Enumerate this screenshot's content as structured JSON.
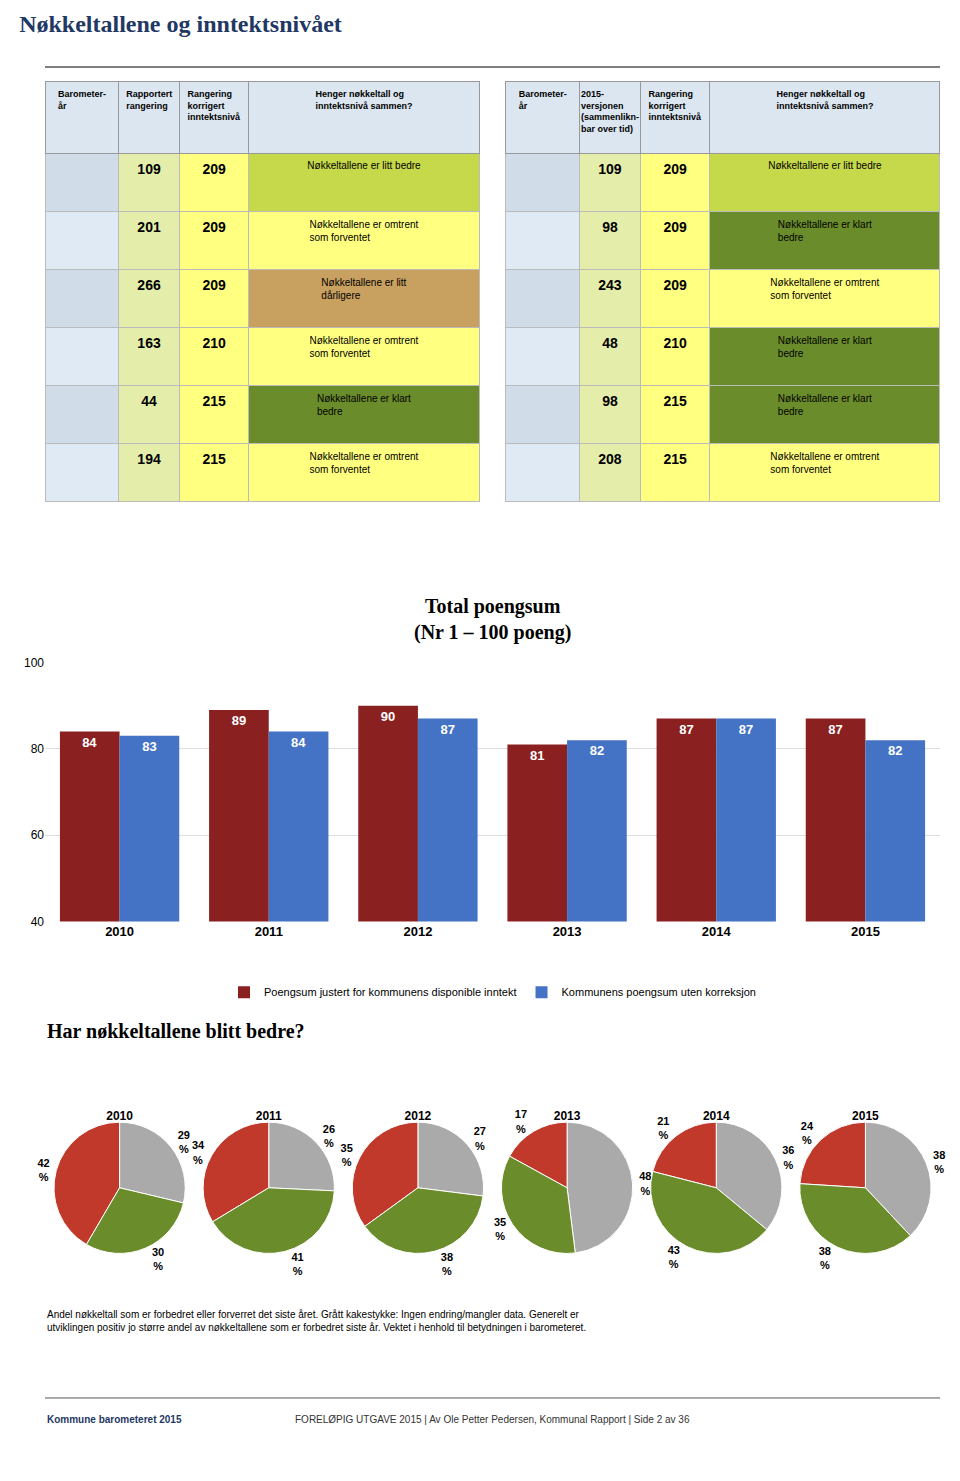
{
  "title": "Nøkkeltallene og inntektsnivået",
  "annotations": [
    "Har nøkkeltallene blitt bedre?",
    "Andel nøkkeltall som er forbedret eller forverret det siste året. Grått kakestykke: Ingen endring/mangler data. Generelt er\nutviklingen positiv jo større andel av nøkkeltallene som er forbedret siste år. Vektet i henhold til betydningen i barometeret.",
    "Kommune barometeret 2015",
    "FORELØPIG UTGAVE 2015 | Av Ole Petter Pedersen, Kommunal Rapport | Side 2 av 36"
  ],
  "chart_data": [
    {
      "type": "table",
      "headers": [
        "Barometer-\når",
        "Rapportert\nrangering",
        "Rangering\nkorrigert\ninntektsnivå",
        "Henger nøkkeltall og\ninntektsnivå sammen?"
      ],
      "rows": [
        [
          null,
          109,
          209,
          "Nøkkeltallene er litt bedre"
        ],
        [
          null,
          201,
          209,
          "Nøkkeltallene er omtrent\nsom forventet"
        ],
        [
          null,
          266,
          209,
          "Nøkkeltallene er litt\ndårligere"
        ],
        [
          null,
          163,
          210,
          "Nøkkeltallene er omtrent\nsom forventet"
        ],
        [
          null,
          44,
          215,
          "Nøkkeltallene er klart\nbedre"
        ],
        [
          null,
          194,
          215,
          "Nøkkeltallene er omtrent\nsom forventet"
        ]
      ],
      "colors": [
        "#c6d94a",
        "#ffff80",
        "#c8a060",
        "#ffff80",
        "#6b8c2a",
        "#ffff80"
      ]
    },
    {
      "type": "table",
      "headers": [
        "Barometer-\når",
        "2015-\nversjonen\n(sammenlikn-\nbar over tid)",
        "Rangering\nkorrigert\ninntektsnivå",
        "Henger nøkkeltall og\ninntektsnivå sammen?"
      ],
      "rows": [
        [
          null,
          109,
          209,
          "Nøkkeltallene er litt bedre"
        ],
        [
          null,
          98,
          209,
          "Nøkkeltallene er klart\nbedre"
        ],
        [
          null,
          243,
          209,
          "Nøkkeltallene er omtrent\nsom forventet"
        ],
        [
          null,
          48,
          210,
          "Nøkkeltallene er klart\nbedre"
        ],
        [
          null,
          98,
          215,
          "Nøkkeltallene er klart\nbedre"
        ],
        [
          null,
          208,
          215,
          "Nøkkeltallene er omtrent\nsom forventet"
        ]
      ],
      "colors": [
        "#c6d94a",
        "#6b8c2a",
        "#ffff80",
        "#6b8c2a",
        "#6b8c2a",
        "#ffff80"
      ]
    },
    {
      "type": "bar",
      "title": "Total poengsum",
      "subtitle": "(Nr 1 – 100 poeng)",
      "categories": [
        "2010",
        "2011",
        "2012",
        "2013",
        "2014",
        "2015"
      ],
      "series": [
        {
          "name": "Poengsum justert for kommunens disponible inntekt",
          "color": "#8b2020",
          "values": [
            84,
            89,
            90,
            81,
            87,
            87
          ]
        },
        {
          "name": "Kommunens poengsum uten korreksjon",
          "color": "#4472c4",
          "values": [
            83,
            84,
            87,
            82,
            87,
            82
          ]
        }
      ],
      "ylim": [
        40,
        100
      ],
      "yticks": [
        40,
        60,
        80,
        100
      ],
      "grid": true,
      "data_labels": true,
      "legend": "bottom"
    },
    {
      "type": "pie",
      "title": "2010",
      "values": [
        29,
        42,
        30
      ],
      "value_labels": [
        "29\n%",
        "42\n%",
        "30\n%"
      ],
      "colors": [
        "#aaaaaa",
        "#c0392b",
        "#6b8c2a"
      ]
    },
    {
      "type": "pie",
      "title": "2011",
      "values": [
        26,
        34,
        41
      ],
      "value_labels": [
        "26\n%",
        "34\n%",
        "41\n%"
      ],
      "colors": [
        "#aaaaaa",
        "#c0392b",
        "#6b8c2a"
      ]
    },
    {
      "type": "pie",
      "title": "2012",
      "values": [
        27,
        35,
        38
      ],
      "value_labels": [
        "27\n%",
        "35\n%",
        "38\n%"
      ],
      "colors": [
        "#aaaaaa",
        "#c0392b",
        "#6b8c2a"
      ]
    },
    {
      "type": "pie",
      "title": "2013",
      "values": [
        48,
        17,
        35
      ],
      "value_labels": [
        "48\n%",
        "17\n%",
        "35\n%"
      ],
      "colors": [
        "#aaaaaa",
        "#c0392b",
        "#6b8c2a"
      ]
    },
    {
      "type": "pie",
      "title": "2014",
      "values": [
        36,
        21,
        43
      ],
      "value_labels": [
        "36\n%",
        "21\n%",
        "43\n%"
      ],
      "colors": [
        "#aaaaaa",
        "#c0392b",
        "#6b8c2a"
      ]
    },
    {
      "type": "pie",
      "title": "2015",
      "values": [
        38,
        24,
        38
      ],
      "value_labels": [
        "38\n%",
        "24\n%",
        "38\n%"
      ],
      "colors": [
        "#aaaaaa",
        "#c0392b",
        "#6b8c2a"
      ]
    }
  ]
}
